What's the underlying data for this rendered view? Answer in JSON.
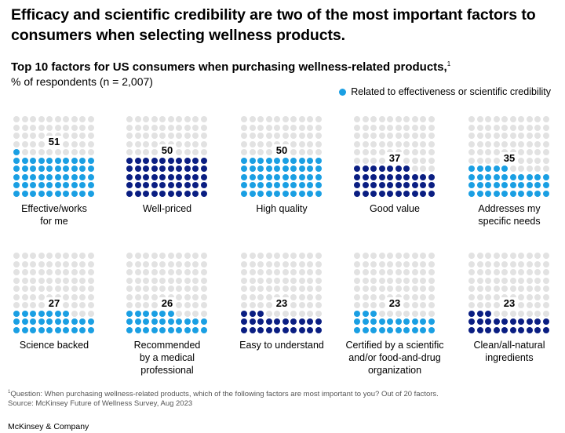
{
  "title": "Efficacy and scientific credibility are two of the most important factors to consumers when selecting wellness products.",
  "colors": {
    "effective": "#1a9fe3",
    "other": "#0a1e82",
    "empty": "#e2e2e2"
  },
  "chart_data": {
    "type": "waffle",
    "title": "Top 10 factors for US consumers when purchasing wellness-related products,",
    "title_footnote": "1",
    "unit_label": "% of respondents (n = 2,007)",
    "legend": [
      {
        "label": "Related to effectiveness or scientific credibility",
        "color": "#1a9fe3"
      }
    ],
    "grid": [
      10,
      10
    ],
    "items": [
      {
        "label": "Effective/works\nfor me",
        "value": 51,
        "effective": true
      },
      {
        "label": "Well-priced",
        "value": 50,
        "effective": false
      },
      {
        "label": "High quality",
        "value": 50,
        "effective": true
      },
      {
        "label": "Good value",
        "value": 37,
        "effective": false
      },
      {
        "label": "Addresses my\nspecific needs",
        "value": 35,
        "effective": true
      },
      {
        "label": "Science backed",
        "value": 27,
        "effective": true
      },
      {
        "label": "Recommended\nby a medical\nprofessional",
        "value": 26,
        "effective": true
      },
      {
        "label": "Easy to understand",
        "value": 23,
        "effective": false
      },
      {
        "label": "Certified by a scientific\nand/or food-and-drug\norganization",
        "value": 23,
        "effective": true
      },
      {
        "label": "Clean/all-natural\ningredients",
        "value": 23,
        "effective": false
      }
    ]
  },
  "footnote_marker": "1",
  "footnote": "Question: When purchasing wellness-related products, which of the following factors are most important to you? Out of 20 factors.",
  "source": "Source: McKinsey Future of Wellness Survey, Aug 2023",
  "brand": "McKinsey & Company"
}
